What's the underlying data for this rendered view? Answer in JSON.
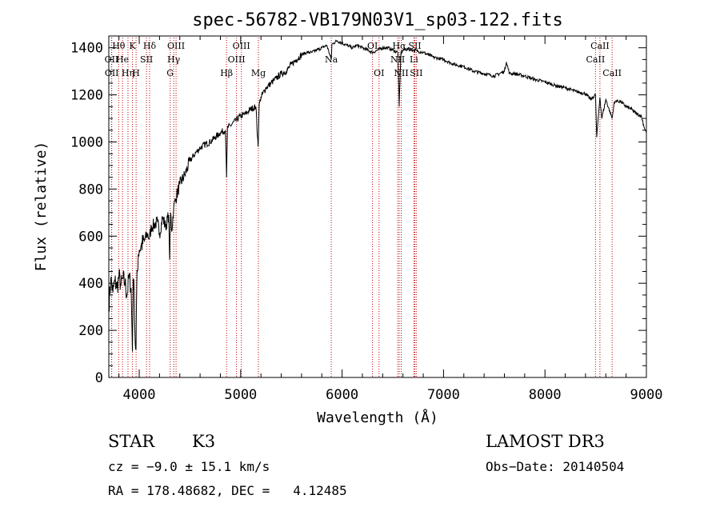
{
  "chart_data": {
    "type": "line",
    "title": "spec-56782-VB179N03V1_sp03-122.fits",
    "xlabel": "Wavelength (Å)",
    "ylabel": "Flux (relative)",
    "xlim": [
      3700,
      9000
    ],
    "ylim": [
      0,
      1450
    ],
    "xticks": [
      4000,
      5000,
      6000,
      7000,
      8000,
      9000
    ],
    "yticks": [
      0,
      200,
      400,
      600,
      800,
      1000,
      1200,
      1400
    ],
    "spectrum": {
      "x": [
        3700,
        3720,
        3740,
        3760,
        3780,
        3800,
        3820,
        3840,
        3860,
        3880,
        3900,
        3920,
        3933,
        3940,
        3950,
        3960,
        3968,
        3975,
        3990,
        4000,
        4020,
        4050,
        4080,
        4101,
        4120,
        4150,
        4180,
        4200,
        4230,
        4260,
        4290,
        4300,
        4310,
        4320,
        4340,
        4360,
        4400,
        4450,
        4500,
        4550,
        4600,
        4650,
        4700,
        4750,
        4800,
        4850,
        4861,
        4870,
        4900,
        4950,
        5000,
        5050,
        5100,
        5150,
        5172,
        5183,
        5200,
        5250,
        5300,
        5350,
        5400,
        5450,
        5500,
        5550,
        5600,
        5650,
        5700,
        5750,
        5800,
        5850,
        5893,
        5900,
        5950,
        6000,
        6050,
        6100,
        6150,
        6200,
        6250,
        6300,
        6350,
        6400,
        6450,
        6500,
        6550,
        6563,
        6580,
        6600,
        6650,
        6700,
        6750,
        6800,
        6850,
        6900,
        6950,
        7000,
        7100,
        7200,
        7300,
        7400,
        7500,
        7600,
        7620,
        7650,
        7700,
        7800,
        7900,
        8000,
        8100,
        8200,
        8300,
        8400,
        8450,
        8498,
        8510,
        8542,
        8560,
        8600,
        8662,
        8680,
        8700,
        8750,
        8800,
        8850,
        8900,
        8950,
        8980,
        9000
      ],
      "y": [
        300,
        420,
        360,
        410,
        380,
        430,
        390,
        420,
        400,
        350,
        430,
        380,
        110,
        420,
        360,
        150,
        120,
        380,
        520,
        540,
        560,
        580,
        610,
        590,
        640,
        650,
        660,
        610,
        680,
        640,
        690,
        500,
        700,
        620,
        720,
        760,
        820,
        860,
        920,
        950,
        975,
        990,
        1000,
        1020,
        1040,
        1050,
        850,
        1060,
        1070,
        1090,
        1110,
        1120,
        1140,
        1150,
        980,
        1160,
        1190,
        1230,
        1250,
        1270,
        1290,
        1300,
        1330,
        1350,
        1370,
        1380,
        1380,
        1390,
        1400,
        1410,
        1350,
        1415,
        1430,
        1420,
        1410,
        1400,
        1410,
        1400,
        1390,
        1380,
        1390,
        1400,
        1400,
        1390,
        1380,
        1150,
        1380,
        1390,
        1395,
        1390,
        1385,
        1380,
        1370,
        1360,
        1355,
        1350,
        1330,
        1320,
        1300,
        1290,
        1280,
        1300,
        1340,
        1290,
        1290,
        1280,
        1265,
        1255,
        1240,
        1230,
        1215,
        1205,
        1180,
        1200,
        1020,
        1190,
        1100,
        1180,
        1100,
        1160,
        1175,
        1170,
        1150,
        1140,
        1120,
        1110,
        1060,
        1040
      ]
    },
    "lines": [
      {
        "label": "Hθ",
        "x": 3797,
        "row": 0
      },
      {
        "label": "OII",
        "x": 3727,
        "row": 1
      },
      {
        "label": "OII",
        "x": 3729,
        "row": 2
      },
      {
        "label": "He",
        "x": 3835,
        "row": 1
      },
      {
        "label": "Hη",
        "x": 3889,
        "row": 2
      },
      {
        "label": "K",
        "x": 3934,
        "row": 0
      },
      {
        "label": "H",
        "x": 3969,
        "row": 2
      },
      {
        "label": "SII",
        "x": 4072,
        "row": 1
      },
      {
        "label": "Hδ",
        "x": 4102,
        "row": 0
      },
      {
        "label": "OIII",
        "x": 4363,
        "row": 0
      },
      {
        "label": "Hγ",
        "x": 4340,
        "row": 1
      },
      {
        "label": "G",
        "x": 4305,
        "row": 2
      },
      {
        "label": "Hβ",
        "x": 4861,
        "row": 2
      },
      {
        "label": "OIII",
        "x": 5007,
        "row": 0
      },
      {
        "label": "OIII",
        "x": 4959,
        "row": 1
      },
      {
        "label": "Mg",
        "x": 5175,
        "row": 2
      },
      {
        "label": "Na",
        "x": 5893,
        "row": 1
      },
      {
        "label": "OI",
        "x": 6300,
        "row": 0
      },
      {
        "label": "OI",
        "x": 6364,
        "row": 2
      },
      {
        "label": "Hα",
        "x": 6563,
        "row": 0
      },
      {
        "label": "NII",
        "x": 6548,
        "row": 1
      },
      {
        "label": "NII",
        "x": 6583,
        "row": 2
      },
      {
        "label": "SII",
        "x": 6717,
        "row": 0
      },
      {
        "label": "Li",
        "x": 6708,
        "row": 1
      },
      {
        "label": "SII",
        "x": 6731,
        "row": 2
      },
      {
        "label": "CaII",
        "x": 8542,
        "row": 0
      },
      {
        "label": "CaII",
        "x": 8498,
        "row": 1
      },
      {
        "label": "CaII",
        "x": 8662,
        "row": 2
      }
    ]
  },
  "info": {
    "object_class": "STAR",
    "subclass": "K3",
    "survey": "LAMOST DR3",
    "redshift": "cz = −9.0 ± 15.1 km/s",
    "obs_date": "Obs−Date: 20140504",
    "coords": "RA = 178.48682, DEC =   4.12485"
  },
  "colors": {
    "spectrum": "#000000",
    "line_marker": "#c00000"
  }
}
